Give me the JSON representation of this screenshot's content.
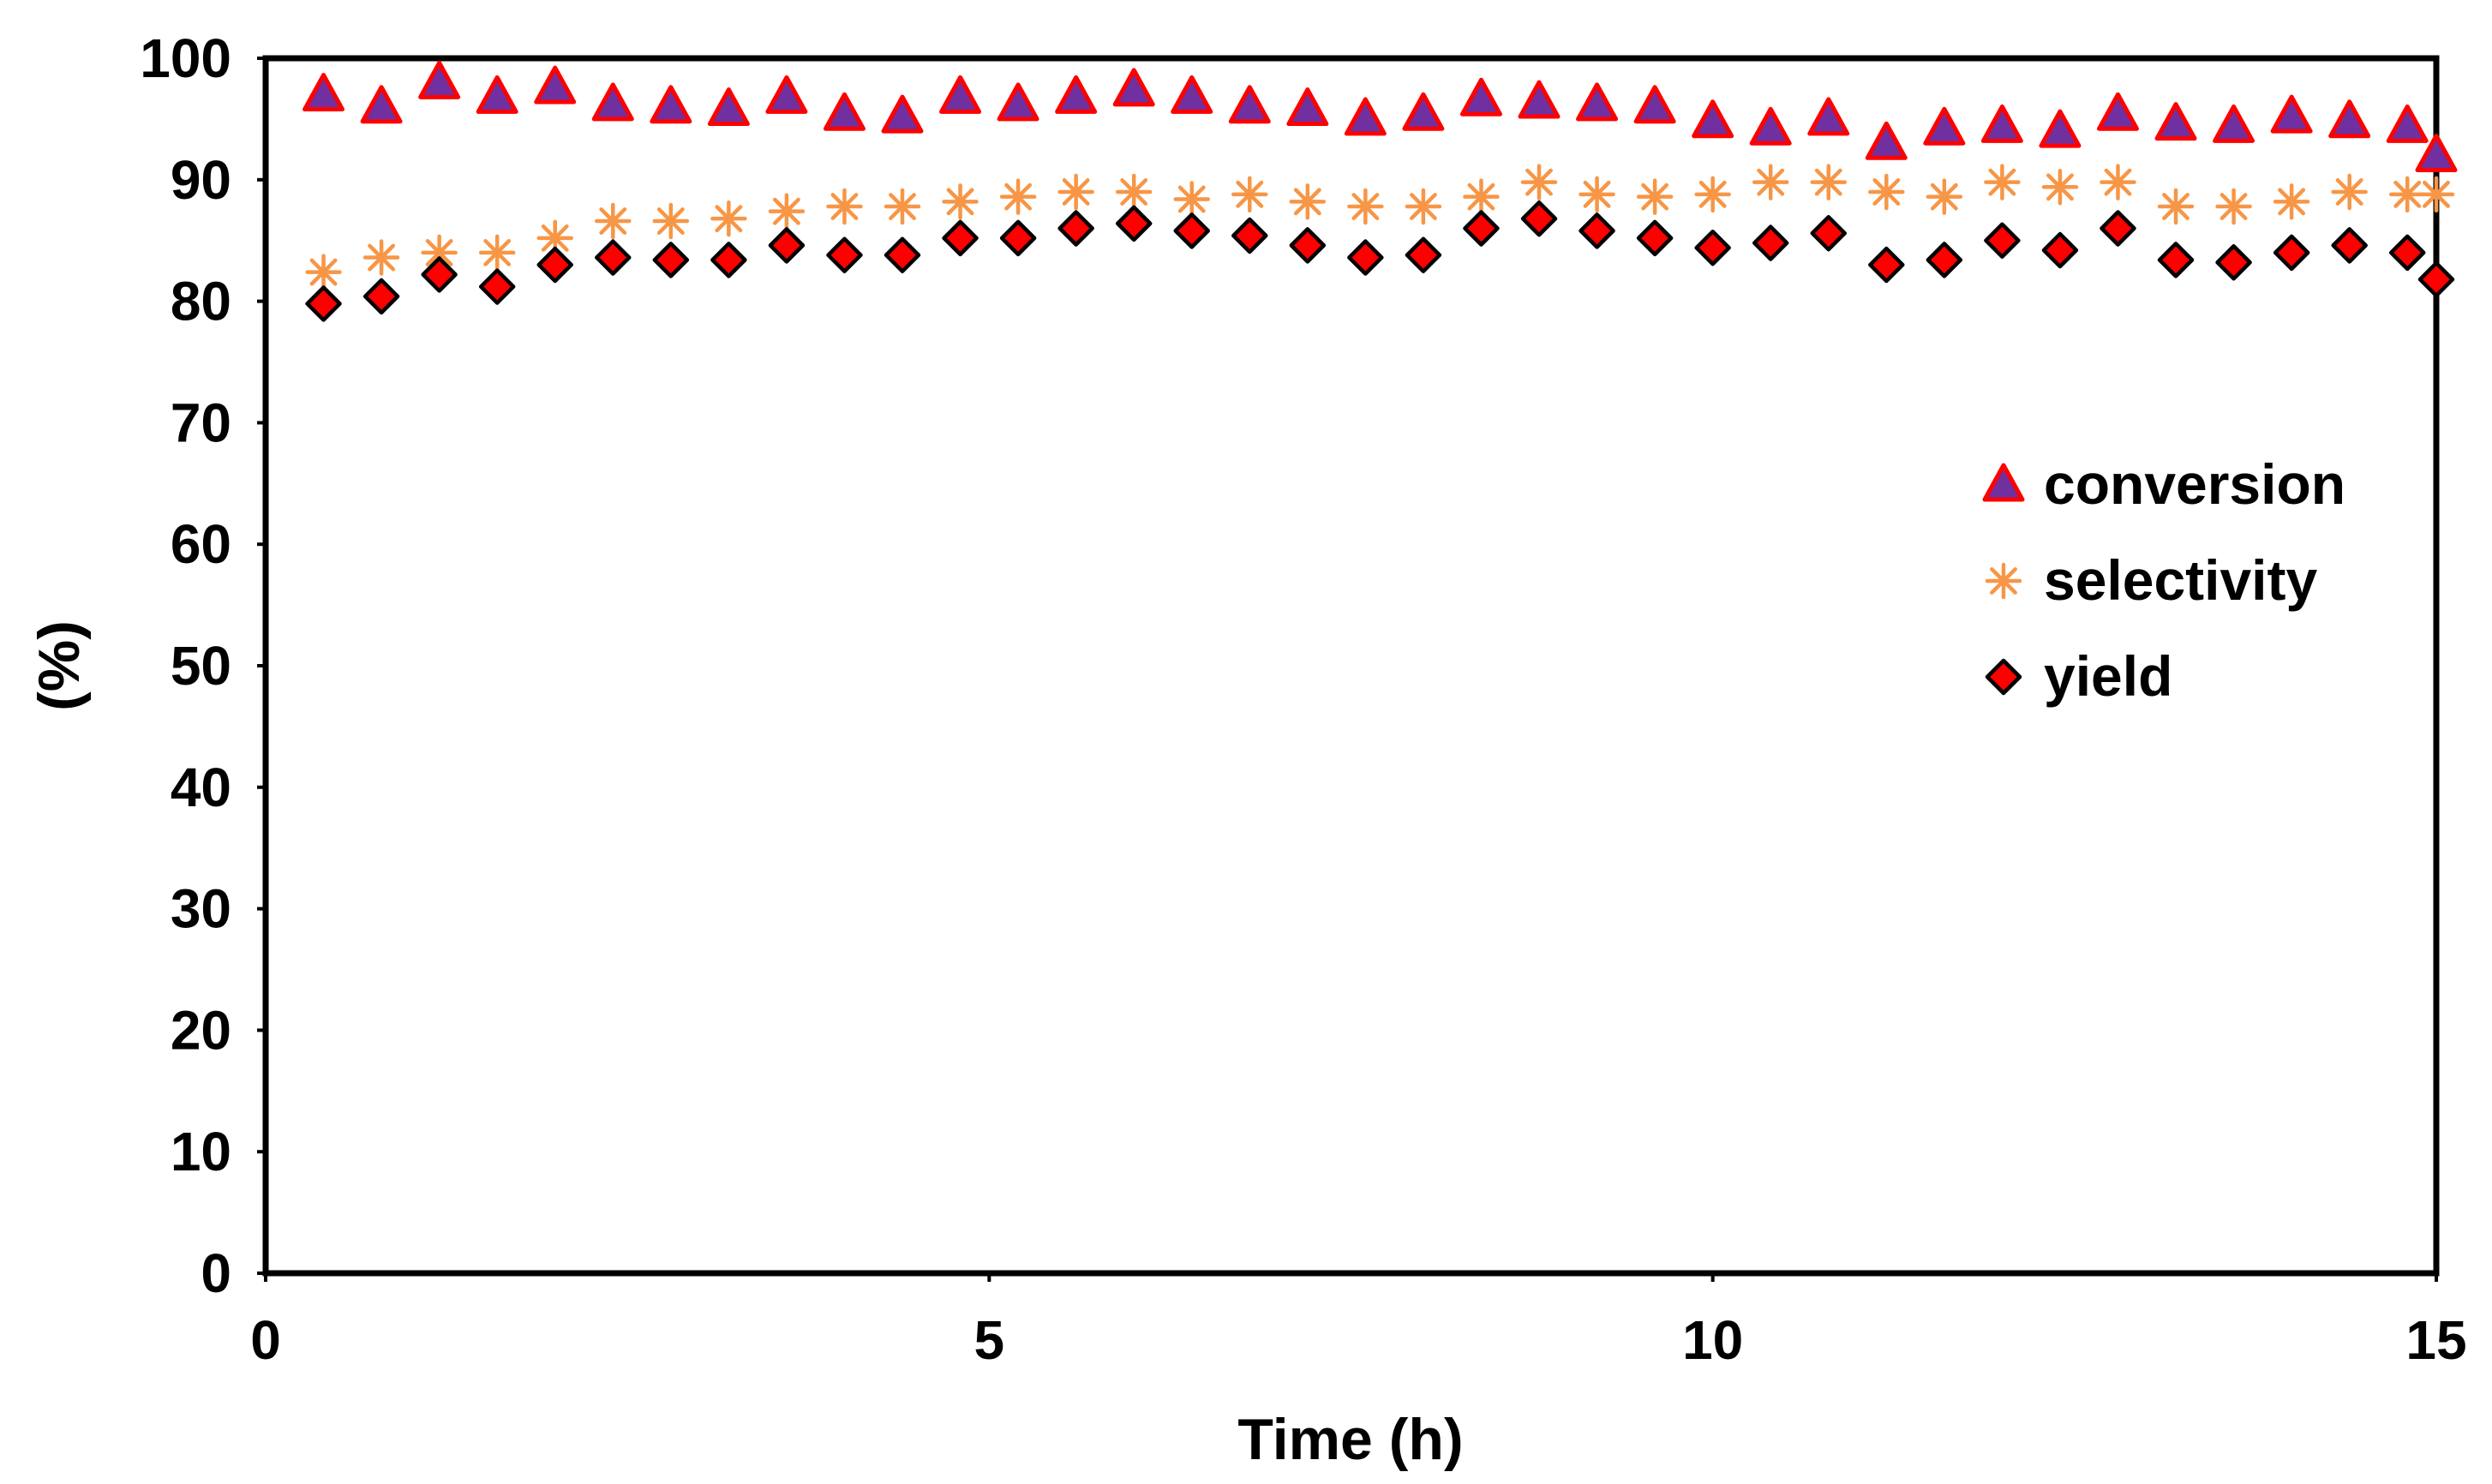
{
  "chart_data": {
    "type": "scatter",
    "title": "",
    "xlabel": "Time (h)",
    "ylabel": "(%)",
    "xlim": [
      0,
      15
    ],
    "ylim": [
      0,
      100
    ],
    "xticks": [
      0,
      5,
      10,
      15
    ],
    "yticks": [
      0,
      10,
      20,
      30,
      40,
      50,
      60,
      70,
      80,
      90,
      100
    ],
    "grid": false,
    "legend_position": "right",
    "x": [
      0.4,
      0.8,
      1.2,
      1.6,
      2.0,
      2.4,
      2.8,
      3.2,
      3.6,
      4.0,
      4.4,
      4.8,
      5.2,
      5.6,
      6.0,
      6.4,
      6.8,
      7.2,
      7.6,
      8.0,
      8.4,
      8.8,
      9.2,
      9.6,
      10.0,
      10.4,
      10.8,
      11.2,
      11.6,
      12.0,
      12.4,
      12.8,
      13.2,
      13.6,
      14.0,
      14.4,
      14.8,
      15.0
    ],
    "series": [
      {
        "name": "conversion",
        "marker": "triangle",
        "fill": "#7030A0",
        "stroke": "#FF0000",
        "values": [
          97,
          96,
          98,
          96.8,
          97.6,
          96.2,
          96,
          95.8,
          96.8,
          95.4,
          95.2,
          96.8,
          96.2,
          96.8,
          97.4,
          96.8,
          96,
          95.8,
          95,
          95.4,
          96.6,
          96.4,
          96.2,
          96,
          94.8,
          94.2,
          95,
          93,
          94.2,
          94.4,
          94,
          95.4,
          94.6,
          94.4,
          95.2,
          94.8,
          94.4,
          92
        ]
      },
      {
        "name": "selectivity",
        "marker": "star",
        "fill": "#F79646",
        "stroke": "#F79646",
        "values": [
          82.4,
          83.6,
          84,
          84,
          85.2,
          86.6,
          86.6,
          86.8,
          87.4,
          87.8,
          87.8,
          88.2,
          88.6,
          89,
          89,
          88.4,
          88.8,
          88.2,
          87.8,
          87.8,
          88.6,
          89.8,
          88.8,
          88.6,
          88.8,
          89.8,
          89.8,
          89,
          88.6,
          89.8,
          89.4,
          89.8,
          87.8,
          87.8,
          88.2,
          89,
          88.8,
          88.8
        ]
      },
      {
        "name": "yield",
        "marker": "diamond",
        "fill": "#FF0000",
        "stroke": "#000000",
        "values": [
          79.8,
          80.4,
          82.2,
          81.2,
          83,
          83.6,
          83.4,
          83.4,
          84.6,
          83.8,
          83.8,
          85.2,
          85.2,
          86,
          86.4,
          85.8,
          85.4,
          84.6,
          83.6,
          83.8,
          86,
          86.8,
          85.8,
          85.2,
          84.4,
          84.8,
          85.6,
          83,
          83.4,
          85,
          84.2,
          86,
          83.4,
          83.2,
          84,
          84.6,
          84,
          81.8
        ]
      }
    ]
  }
}
